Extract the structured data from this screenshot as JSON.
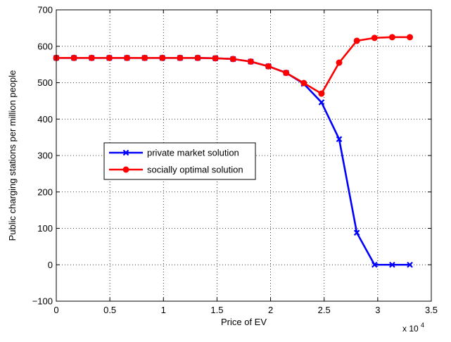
{
  "chart_data": {
    "type": "line",
    "xlabel": "Price of EV",
    "ylabel": "Public charging stations per million people",
    "x_multiplier_label": "x 10",
    "x_multiplier_exponent": "4",
    "xlim": [
      0,
      35000
    ],
    "ylim": [
      -100,
      700
    ],
    "xticks": [
      0,
      5000,
      10000,
      15000,
      20000,
      25000,
      30000,
      35000
    ],
    "xtick_labels": [
      "0",
      "0.5",
      "1",
      "1.5",
      "2",
      "2.5",
      "3",
      "3.5"
    ],
    "yticks": [
      -100,
      0,
      100,
      200,
      300,
      400,
      500,
      600,
      700
    ],
    "ytick_labels": [
      "−100",
      "0",
      "100",
      "200",
      "300",
      "400",
      "500",
      "600",
      "700"
    ],
    "grid": true,
    "grid_style": "dotted",
    "legend_position": "center-left",
    "series": [
      {
        "name": "private market solution",
        "color": "#0000ff",
        "marker": "x",
        "x": [
          0,
          1650,
          3300,
          4950,
          6600,
          8250,
          9900,
          11550,
          13200,
          14850,
          16500,
          18150,
          19800,
          21450,
          23100,
          24750,
          26400,
          28050,
          29700,
          31350,
          33000
        ],
        "y": [
          568,
          568,
          568,
          568,
          568,
          568,
          568,
          568,
          568,
          567,
          565,
          558,
          545,
          527,
          497,
          446,
          345,
          88,
          0,
          0,
          0
        ]
      },
      {
        "name": "socially optimal solution",
        "color": "#ff0000",
        "marker": "o",
        "x": [
          0,
          1650,
          3300,
          4950,
          6600,
          8250,
          9900,
          11550,
          13200,
          14850,
          16500,
          18150,
          19800,
          21450,
          23100,
          24750,
          26400,
          28050,
          29700,
          31350,
          33000
        ],
        "y": [
          568,
          568,
          568,
          568,
          568,
          568,
          568,
          568,
          568,
          567,
          565,
          558,
          545,
          527,
          499,
          470,
          555,
          615,
          623,
          625,
          625
        ]
      }
    ]
  }
}
